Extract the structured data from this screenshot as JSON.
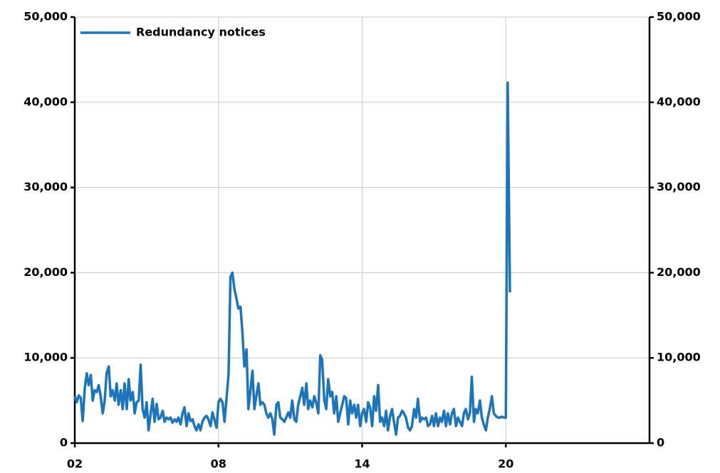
{
  "chart_data": {
    "type": "line",
    "x": [
      2002,
      2002.08,
      2002.17,
      2002.25,
      2002.33,
      2002.42,
      2002.5,
      2002.58,
      2002.67,
      2002.75,
      2002.83,
      2002.92,
      2003,
      2003.08,
      2003.17,
      2003.25,
      2003.33,
      2003.42,
      2003.5,
      2003.58,
      2003.67,
      2003.75,
      2003.83,
      2003.92,
      2004,
      2004.08,
      2004.17,
      2004.25,
      2004.33,
      2004.42,
      2004.5,
      2004.58,
      2004.67,
      2004.75,
      2004.83,
      2004.92,
      2005,
      2005.08,
      2005.17,
      2005.25,
      2005.33,
      2005.42,
      2005.5,
      2005.58,
      2005.67,
      2005.75,
      2005.83,
      2005.92,
      2006,
      2006.08,
      2006.17,
      2006.25,
      2006.33,
      2006.42,
      2006.5,
      2006.58,
      2006.67,
      2006.75,
      2006.83,
      2006.92,
      2007,
      2007.08,
      2007.17,
      2007.25,
      2007.33,
      2007.42,
      2007.5,
      2007.58,
      2007.67,
      2007.75,
      2007.83,
      2007.92,
      2008,
      2008.08,
      2008.17,
      2008.25,
      2008.33,
      2008.42,
      2008.5,
      2008.58,
      2008.67,
      2008.75,
      2008.83,
      2008.92,
      2009,
      2009.08,
      2009.17,
      2009.25,
      2009.33,
      2009.42,
      2009.5,
      2009.58,
      2009.67,
      2009.75,
      2009.83,
      2009.92,
      2010,
      2010.08,
      2010.17,
      2010.25,
      2010.33,
      2010.42,
      2010.5,
      2010.58,
      2010.67,
      2010.75,
      2010.83,
      2010.92,
      2011,
      2011.08,
      2011.17,
      2011.25,
      2011.33,
      2011.42,
      2011.5,
      2011.58,
      2011.67,
      2011.75,
      2011.83,
      2011.92,
      2012,
      2012.08,
      2012.17,
      2012.25,
      2012.33,
      2012.42,
      2012.5,
      2012.58,
      2012.67,
      2012.75,
      2012.83,
      2012.92,
      2013,
      2013.08,
      2013.17,
      2013.25,
      2013.33,
      2013.42,
      2013.5,
      2013.58,
      2013.67,
      2013.75,
      2013.83,
      2013.92,
      2014,
      2014.08,
      2014.17,
      2014.25,
      2014.33,
      2014.42,
      2014.5,
      2014.58,
      2014.67,
      2014.75,
      2014.83,
      2014.92,
      2015,
      2015.08,
      2015.17,
      2015.25,
      2015.33,
      2015.42,
      2015.5,
      2015.58,
      2015.67,
      2015.75,
      2015.83,
      2015.92,
      2016,
      2016.08,
      2016.17,
      2016.25,
      2016.33,
      2016.42,
      2016.5,
      2016.58,
      2016.67,
      2016.75,
      2016.83,
      2016.92,
      2017,
      2017.08,
      2017.17,
      2017.25,
      2017.33,
      2017.42,
      2017.5,
      2017.58,
      2017.67,
      2017.75,
      2017.83,
      2017.92,
      2018,
      2018.08,
      2018.17,
      2018.25,
      2018.33,
      2018.42,
      2018.5,
      2018.58,
      2018.67,
      2018.75,
      2018.83,
      2018.92,
      2019,
      2019.08,
      2019.17,
      2019.25,
      2019.33,
      2019.42,
      2019.5,
      2019.58,
      2019.67,
      2019.75,
      2019.83,
      2019.92,
      2020,
      2020.08,
      2020.17
    ],
    "series": [
      {
        "name": "Redundancy notices",
        "color": "#1a75bc",
        "values": [
          5500,
          4800,
          5600,
          5300,
          2600,
          6500,
          8200,
          6800,
          8000,
          5000,
          6200,
          6000,
          6800,
          5500,
          3500,
          5000,
          8200,
          9000,
          5500,
          6200,
          5000,
          7000,
          4500,
          6200,
          4000,
          7000,
          4000,
          7500,
          5000,
          6000,
          3500,
          4800,
          5000,
          9200,
          4000,
          3000,
          4800,
          1500,
          3500,
          5200,
          2500,
          4600,
          2800,
          3000,
          3800,
          2500,
          3000,
          2800,
          3000,
          2400,
          2800,
          2500,
          3000,
          2200,
          3500,
          4200,
          2000,
          3500,
          2600,
          2800,
          2000,
          1500,
          2200,
          1500,
          2500,
          3000,
          3200,
          2800,
          2000,
          3600,
          2800,
          1800,
          4800,
          5200,
          4800,
          2500,
          5000,
          8000,
          19500,
          20000,
          18000,
          17000,
          15800,
          16000,
          13000,
          9000,
          11000,
          4000,
          6000,
          8500,
          4000,
          5500,
          7000,
          4500,
          4800,
          4500,
          3500,
          3000,
          3500,
          2800,
          1000,
          4500,
          4800,
          3000,
          2800,
          2500,
          3000,
          3600,
          3000,
          5000,
          2800,
          2500,
          4500,
          5500,
          6500,
          4500,
          7000,
          4000,
          5000,
          4200,
          5500,
          4800,
          3500,
          10300,
          9800,
          5000,
          4000,
          7500,
          5500,
          6000,
          3500,
          5500,
          2500,
          3500,
          4500,
          5500,
          5300,
          2200,
          5000,
          3500,
          4500,
          3000,
          4500,
          2000,
          3500,
          4000,
          2500,
          4800,
          4200,
          2000,
          5500,
          3800,
          6800,
          2500,
          3000,
          2000,
          3800,
          1500,
          3200,
          4000,
          2500,
          1000,
          3000,
          3200,
          3800,
          3500,
          3000,
          1800,
          1500,
          2000,
          4000,
          3000,
          5200,
          2500,
          3000,
          2800,
          3000,
          2000,
          2200,
          3200,
          2000,
          3500,
          2000,
          3000,
          2500,
          3800,
          2000,
          3500,
          2200,
          3500,
          4000,
          2000,
          3000,
          2500,
          2000,
          3500,
          4000,
          2800,
          3500,
          7800,
          2500,
          4000,
          3500,
          5000,
          3000,
          2200,
          1500,
          3000,
          4000,
          5500,
          3500,
          3200,
          3000,
          3000,
          3100,
          3000,
          3000,
          42300,
          17700
        ]
      }
    ],
    "xlim": [
      2002,
      2026
    ],
    "xticks": [
      {
        "value": 2002,
        "label": "02"
      },
      {
        "value": 2008,
        "label": "08"
      },
      {
        "value": 2014,
        "label": "14"
      },
      {
        "value": 2020,
        "label": "20"
      }
    ],
    "ylim": [
      0,
      50000
    ],
    "yticks": [
      0,
      {
        "value": 10000,
        "label": "10,000"
      },
      {
        "value": 20000,
        "label": "20,000"
      },
      {
        "value": 30000,
        "label": "30,000"
      },
      {
        "value": 40000,
        "label": "40,000"
      },
      {
        "value": 50000,
        "label": "50,000"
      }
    ],
    "y2lim": [
      0,
      50000
    ],
    "y2ticks": [
      0,
      {
        "value": 10000,
        "label": "10,000"
      },
      {
        "value": 20000,
        "label": "20,000"
      },
      {
        "value": 30000,
        "label": "30,000"
      },
      {
        "value": 40000,
        "label": "40,000"
      },
      {
        "value": 50000,
        "label": "50,000"
      }
    ],
    "grid": true,
    "legend": "upper left"
  }
}
